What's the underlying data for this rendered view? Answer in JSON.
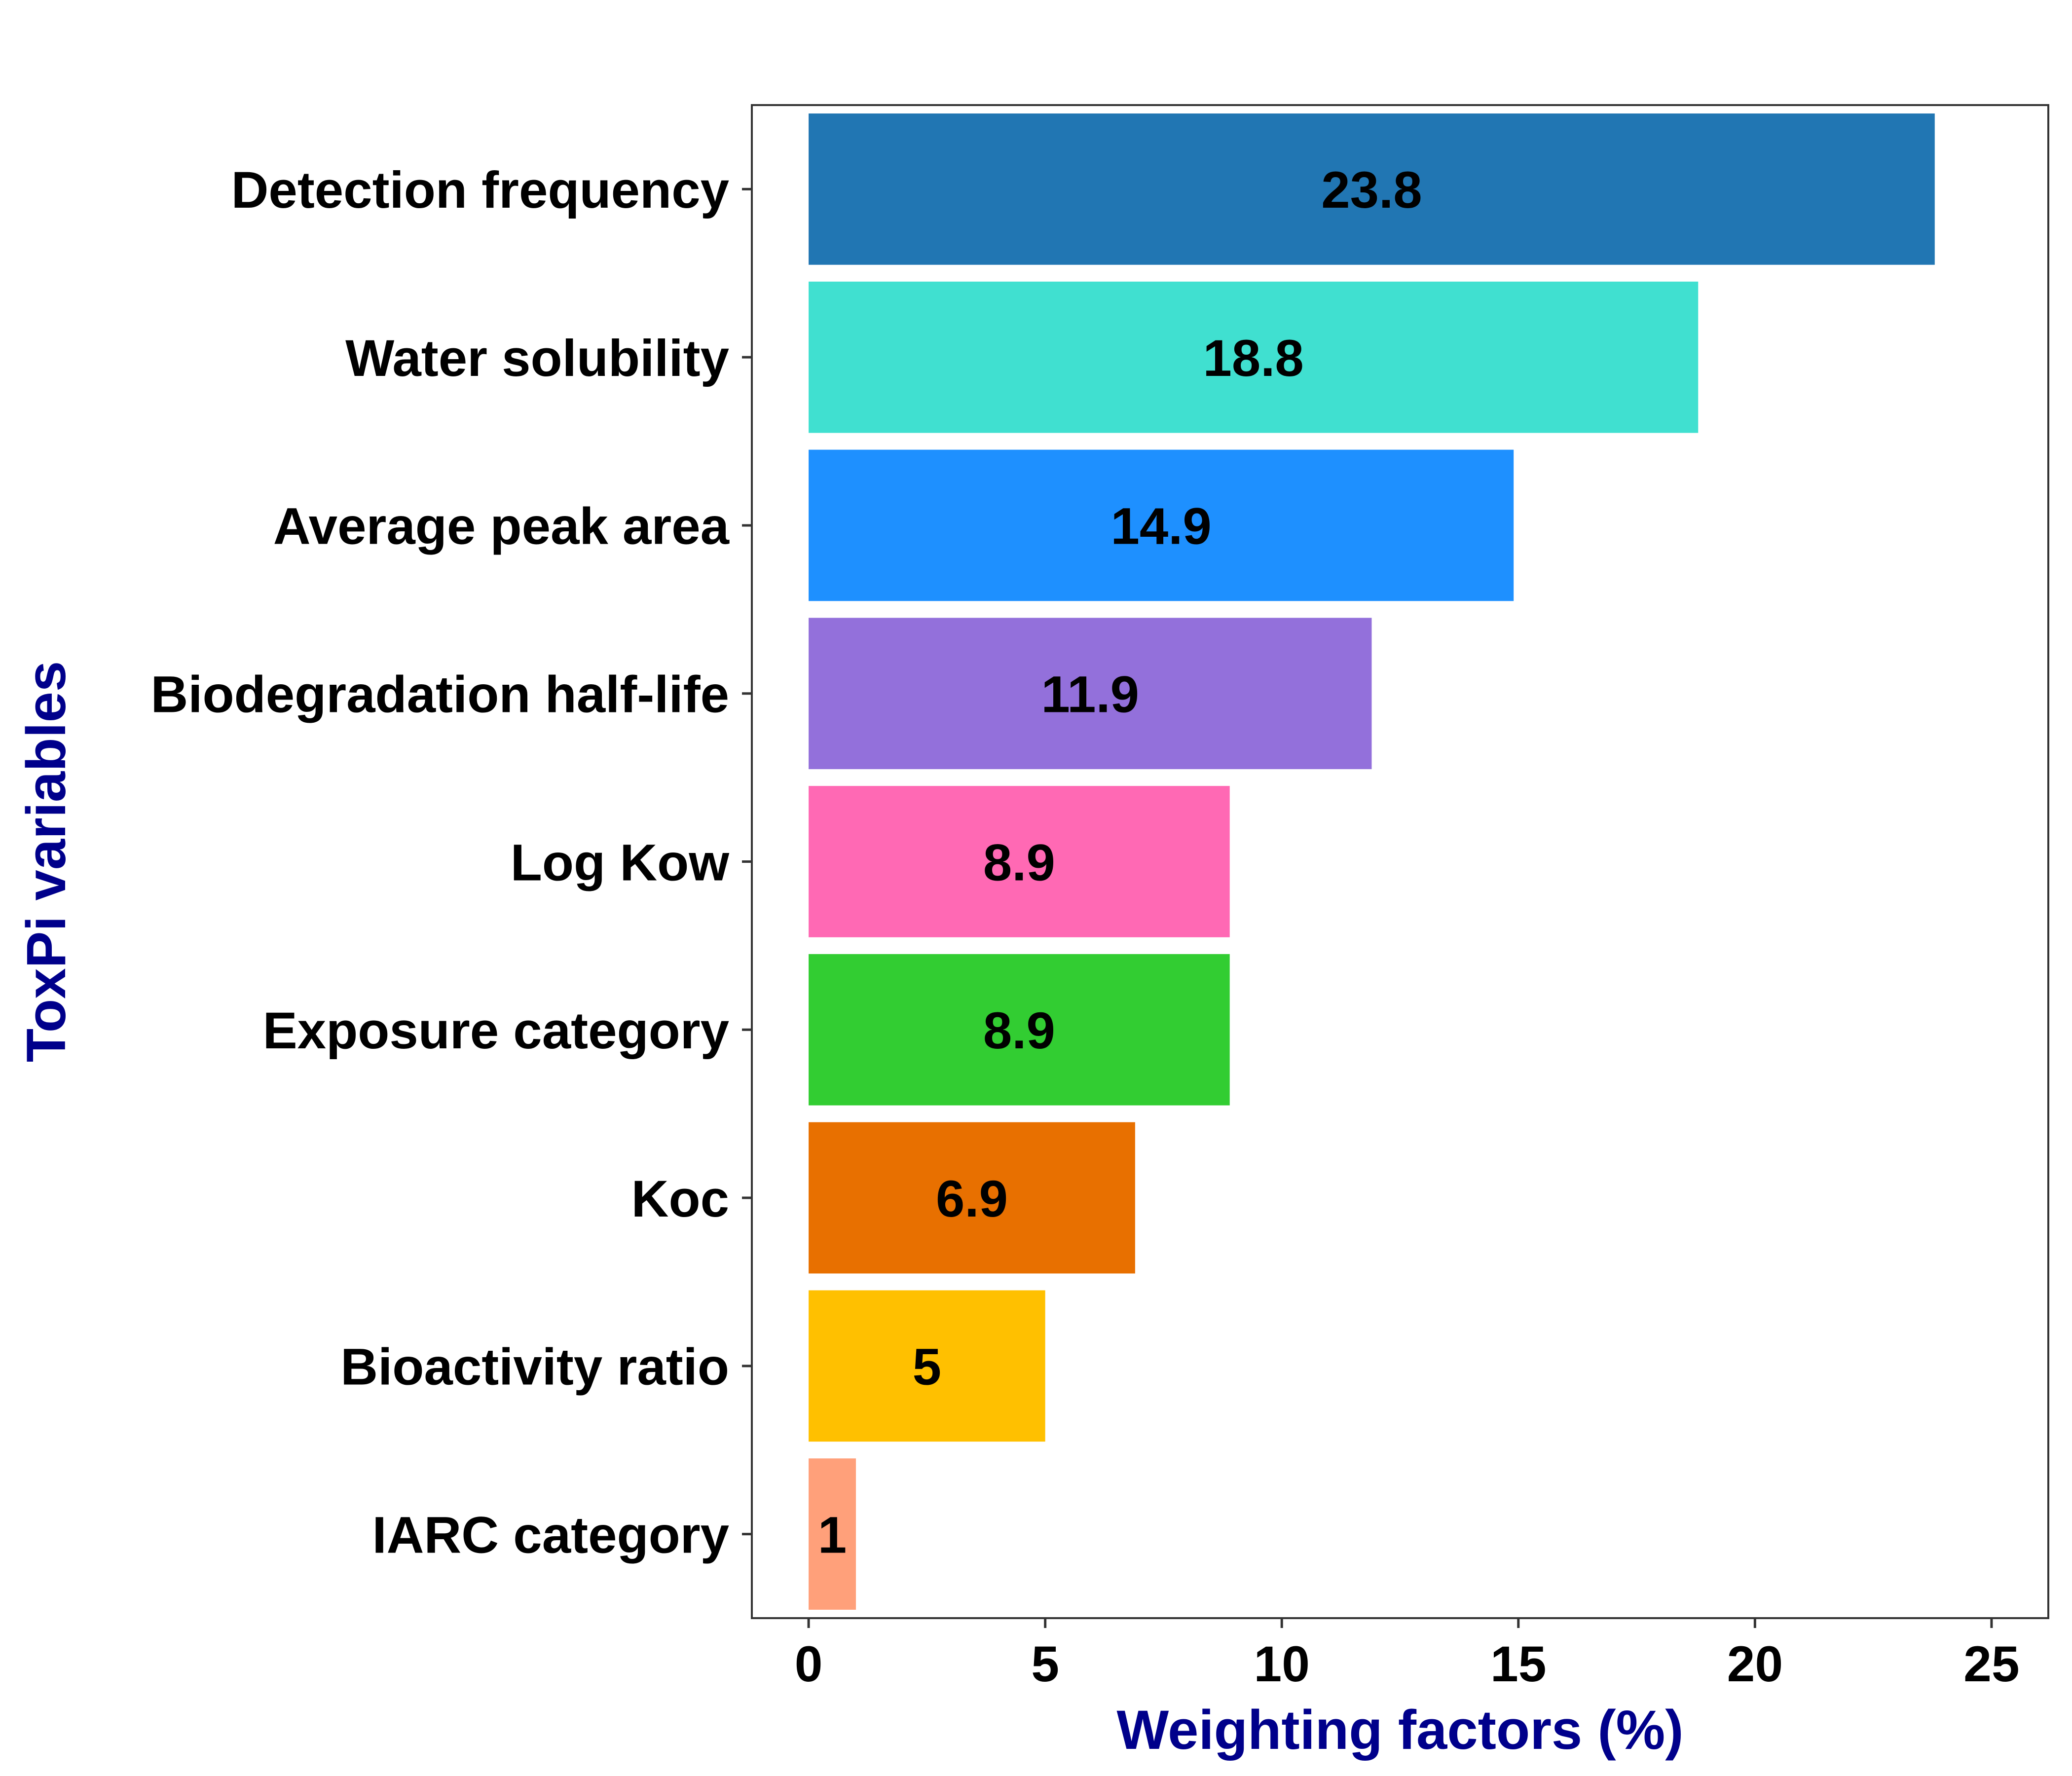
{
  "chart_data": {
    "type": "bar",
    "orientation": "horizontal",
    "categories": [
      "Detection frequency",
      "Water solubility",
      "Average peak area",
      "Biodegradation half-life",
      "Log Kow",
      "Exposure category",
      "Koc",
      "Bioactivity ratio",
      "IARC category"
    ],
    "values": [
      23.8,
      18.8,
      14.9,
      11.9,
      8.9,
      8.9,
      6.9,
      5,
      1
    ],
    "data_labels": [
      "23.8",
      "18.8",
      "14.9",
      "11.9",
      "8.9",
      "8.9",
      "6.9",
      "5",
      "1"
    ],
    "colors": [
      "#2176B3",
      "#40E0D0",
      "#1E90FF",
      "#9370DB",
      "#FF69B4",
      "#32CD32",
      "#E87000",
      "#FFC000",
      "#FFA07A"
    ],
    "xlabel": "Weighting factors (%)",
    "ylabel": "ToxPi variables",
    "axis_title_color": "#00008B",
    "xlim": [
      -1.2,
      26.2
    ],
    "xticks": [
      0,
      5,
      10,
      15,
      20,
      25
    ],
    "xtick_labels": [
      "0",
      "5",
      "10",
      "15",
      "20",
      "25"
    ],
    "grid": false,
    "legend": "none"
  }
}
